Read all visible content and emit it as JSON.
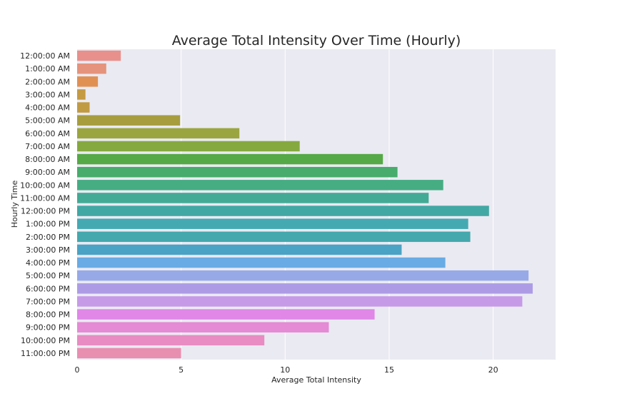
{
  "chart_data": {
    "type": "bar",
    "orientation": "horizontal",
    "title": "Average Total Intensity Over Time (Hourly)",
    "xlabel": "Average Total Intensity",
    "ylabel": "Hourly Time",
    "xlim": [
      0,
      23
    ],
    "xticks": [
      0,
      5,
      10,
      15,
      20
    ],
    "grid": true,
    "background": "#eaeaf2",
    "categories": [
      "12:00:00 AM",
      "1:00:00 AM",
      "2:00:00 AM",
      "3:00:00 AM",
      "4:00:00 AM",
      "5:00:00 AM",
      "6:00:00 AM",
      "7:00:00 AM",
      "8:00:00 AM",
      "9:00:00 AM",
      "10:00:00 AM",
      "11:00:00 AM",
      "12:00:00 PM",
      "1:00:00 PM",
      "2:00:00 PM",
      "3:00:00 PM",
      "4:00:00 PM",
      "5:00:00 PM",
      "6:00:00 PM",
      "7:00:00 PM",
      "8:00:00 PM",
      "9:00:00 PM",
      "10:00:00 PM",
      "11:00:00 PM"
    ],
    "values": [
      2.1,
      1.4,
      1.0,
      0.4,
      0.6,
      4.95,
      7.8,
      10.7,
      14.7,
      15.4,
      17.6,
      16.9,
      19.8,
      18.8,
      18.9,
      15.6,
      17.7,
      21.7,
      21.9,
      21.4,
      14.3,
      12.1,
      9.0,
      5.0
    ],
    "colors": [
      "#e8908c",
      "#e5937c",
      "#e19054",
      "#c49a43",
      "#c19a44",
      "#a79d3f",
      "#9ba540",
      "#86a93f",
      "#55a946",
      "#47ac6c",
      "#46ad83",
      "#43aa95",
      "#42a8a4",
      "#45a9b2",
      "#44a8ad",
      "#4aa3c4",
      "#69abe4",
      "#98a9e8",
      "#ad9ce5",
      "#c79ae8",
      "#e087e8",
      "#e58ad4",
      "#e88cc3",
      "#e88fb0"
    ]
  }
}
